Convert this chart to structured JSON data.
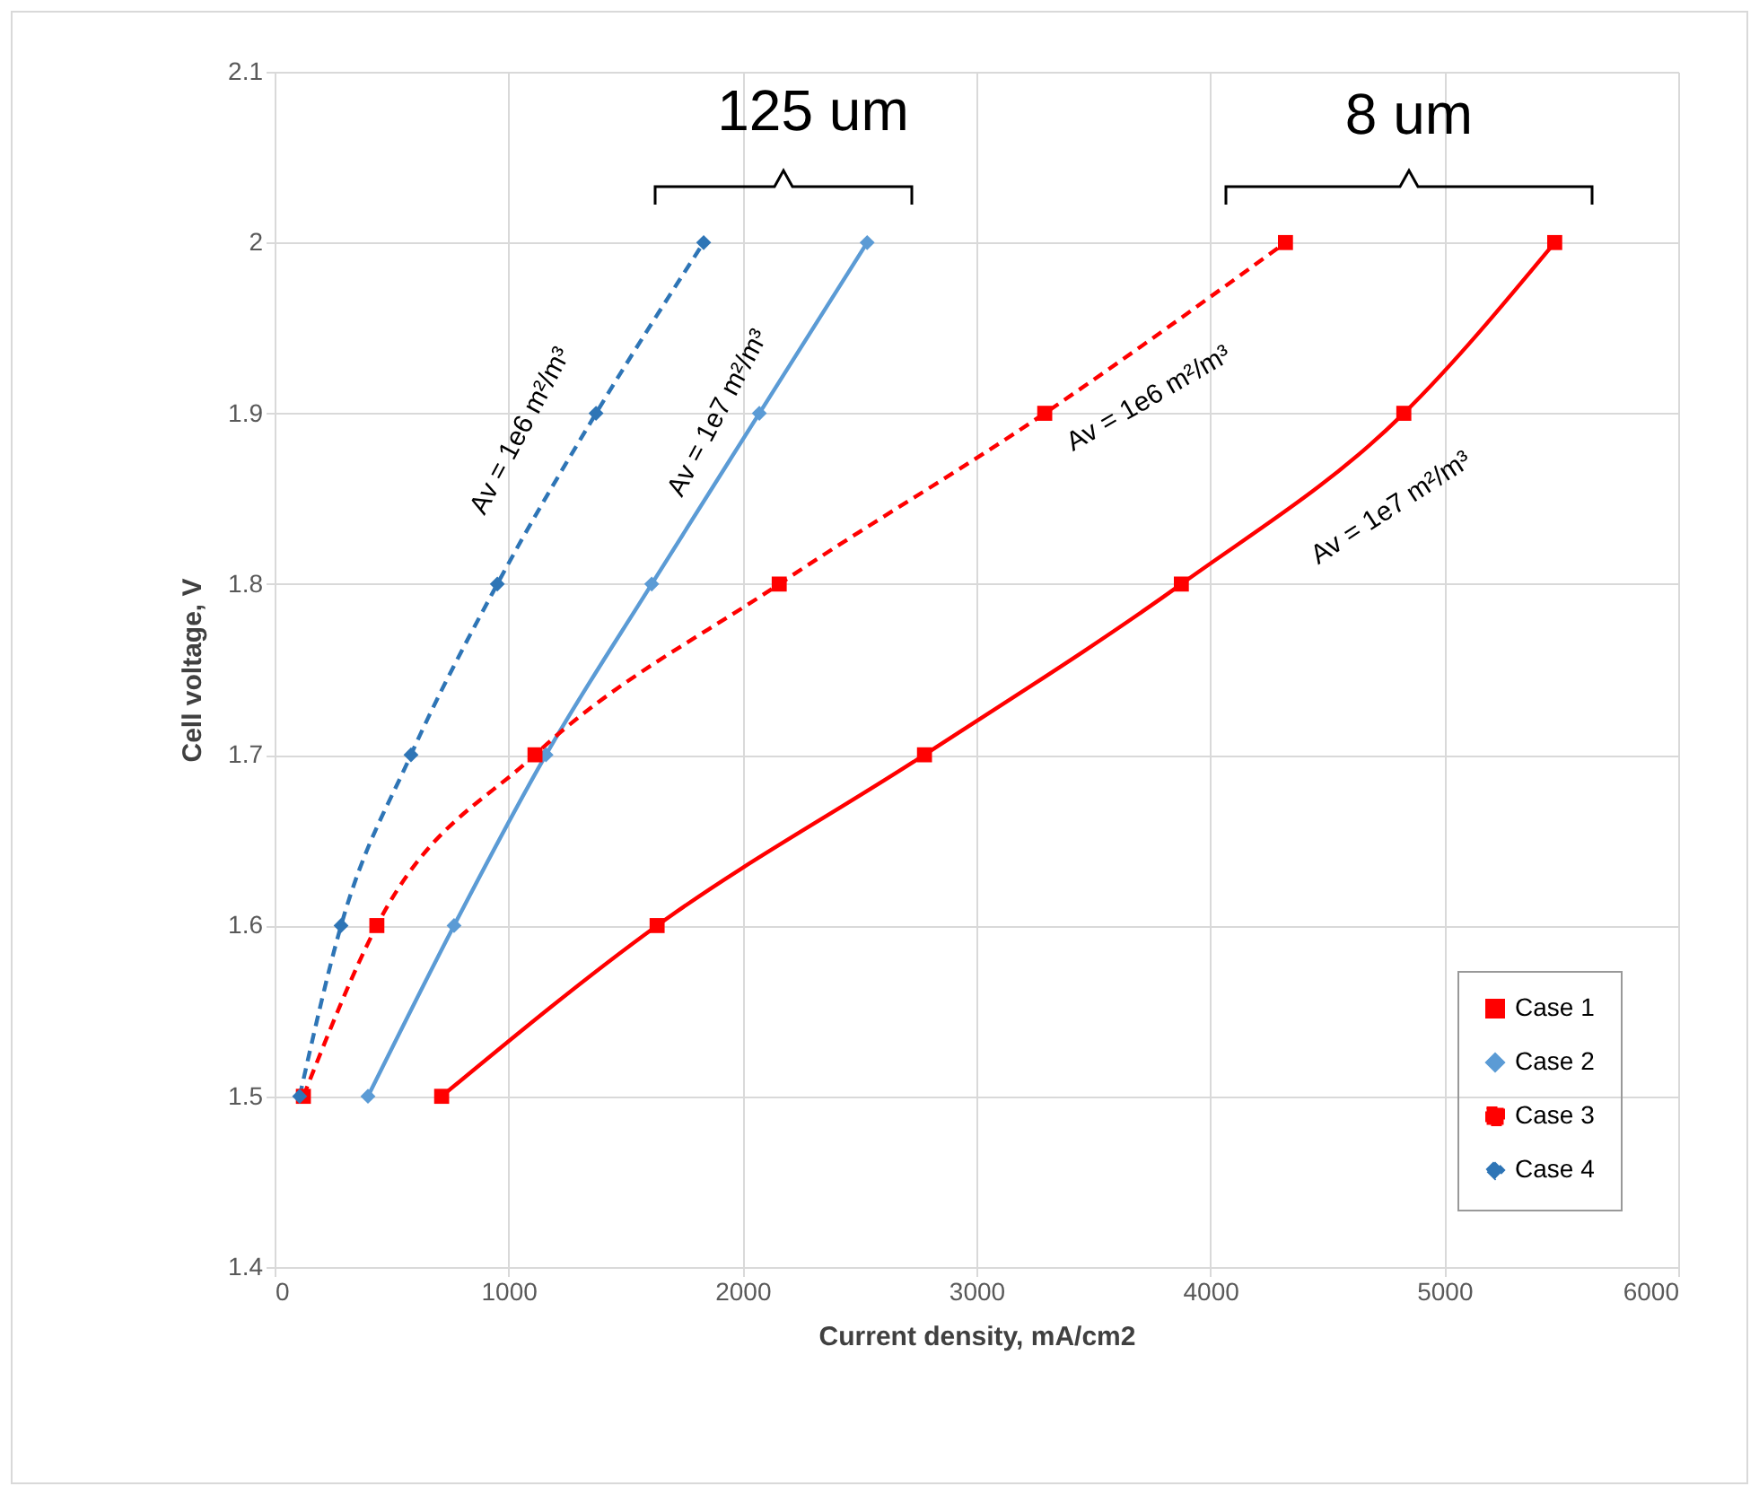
{
  "chart_data": {
    "type": "line",
    "xlabel": "Current density, mA/cm2",
    "ylabel": "Cell voltage, V",
    "xlim": [
      0,
      6000
    ],
    "xticks": [
      0,
      1000,
      2000,
      3000,
      4000,
      5000,
      6000
    ],
    "ylim": [
      1.4,
      2.1
    ],
    "yticks": [
      1.4,
      1.5,
      1.6,
      1.7,
      1.8,
      1.9,
      2,
      2.1
    ],
    "grid": true,
    "legend": "bottom right",
    "series": [
      {
        "name": "Case 1",
        "color": "#ff0000",
        "marker": "square",
        "line_style": "solid",
        "x": [
          714,
          1635,
          2778,
          3876,
          4827,
          5472
        ],
        "values": [
          1.5,
          1.6,
          1.7,
          1.8,
          1.9,
          2.0
        ]
      },
      {
        "name": "Case 2",
        "color": "#5b9bd5",
        "marker": "diamond",
        "line_style": "solid",
        "x": [
          399,
          767,
          1160,
          1612,
          2072,
          2533
        ],
        "values": [
          1.5,
          1.6,
          1.7,
          1.8,
          1.9,
          2.0
        ]
      },
      {
        "name": "Case 3",
        "color": "#ff0000",
        "marker": "square",
        "line_style": "dashed",
        "x": [
          123,
          437,
          1113,
          2157,
          3292,
          4321
        ],
        "values": [
          1.5,
          1.6,
          1.7,
          1.8,
          1.9,
          2.0
        ]
      },
      {
        "name": "Case 4",
        "color": "#2e75b6",
        "marker": "diamond",
        "line_style": "dashed",
        "x": [
          107,
          284,
          583,
          952,
          1374,
          1834
        ],
        "values": [
          1.5,
          1.6,
          1.7,
          1.8,
          1.9,
          2.0
        ]
      }
    ],
    "annotations": [
      "125 um",
      "8 um",
      "Av = 1e6 m²/m³",
      "Av = 1e7 m²/m³",
      "Av = 1e6 m²/m³",
      "Av = 1e7 m²/m³"
    ]
  }
}
